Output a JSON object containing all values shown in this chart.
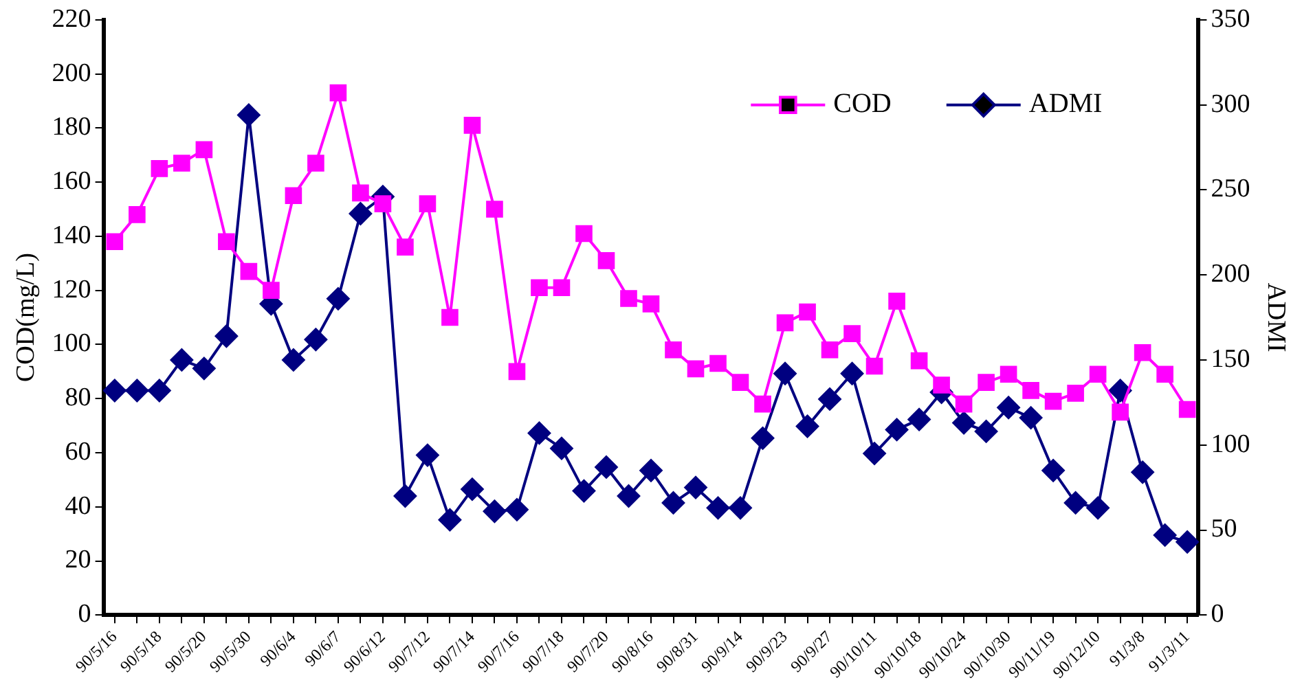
{
  "chart_data": {
    "type": "line",
    "ylabel": "COD(mg/L)",
    "y2label": "ADMI",
    "categories": [
      "90/5/16",
      null,
      "90/5/18",
      null,
      "90/5/20",
      null,
      "90/5/30",
      null,
      "90/6/4",
      null,
      "90/6/7",
      null,
      "90/6/12",
      null,
      "90/7/12",
      null,
      "90/7/14",
      null,
      "90/7/16",
      null,
      "90/7/18",
      null,
      "90/7/20",
      null,
      "90/8/16",
      null,
      "90/8/31",
      null,
      "90/9/14",
      null,
      "90/9/23",
      null,
      "90/9/27",
      null,
      "90/10/11",
      null,
      "90/10/18",
      null,
      "90/10/24",
      null,
      "90/10/30",
      null,
      "90/11/19",
      null,
      "90/12/10",
      null,
      "91/3/8",
      null,
      "91/3/11"
    ],
    "series": [
      {
        "name": "COD",
        "color": "#ff00ff",
        "marker": "square",
        "values": [
          138,
          148,
          165,
          167,
          172,
          138,
          127,
          120,
          155,
          167,
          193,
          156,
          152,
          136,
          152,
          110,
          181,
          150,
          90,
          121,
          121,
          141,
          131,
          117,
          115,
          98,
          91,
          93,
          86,
          78,
          108,
          112,
          98,
          104,
          92,
          116,
          94,
          85,
          78,
          86,
          89,
          83,
          79,
          82,
          89,
          75,
          97,
          89,
          76
        ]
      },
      {
        "name": "ADMI",
        "color": "#000080",
        "marker": "diamond",
        "axis": "y2",
        "values": [
          132,
          132,
          132,
          150,
          145,
          164,
          294,
          183,
          150,
          162,
          186,
          236,
          246,
          70,
          94,
          56,
          74,
          61,
          62,
          107,
          98,
          73,
          87,
          70,
          85,
          66,
          75,
          63,
          63,
          104,
          142,
          111,
          127,
          142,
          95,
          109,
          115,
          131,
          113,
          108,
          122,
          116,
          85,
          66,
          63,
          132,
          84,
          47,
          43
        ]
      }
    ],
    "ylim": [
      0,
      220
    ],
    "yticks": [
      0,
      20,
      40,
      60,
      80,
      100,
      120,
      140,
      160,
      180,
      200,
      220
    ],
    "y2lim": [
      0,
      350
    ],
    "y2ticks": [
      0,
      50,
      100,
      150,
      200,
      250,
      300,
      350
    ],
    "legend": "top right",
    "grid": false,
    "line_style": "solid"
  }
}
